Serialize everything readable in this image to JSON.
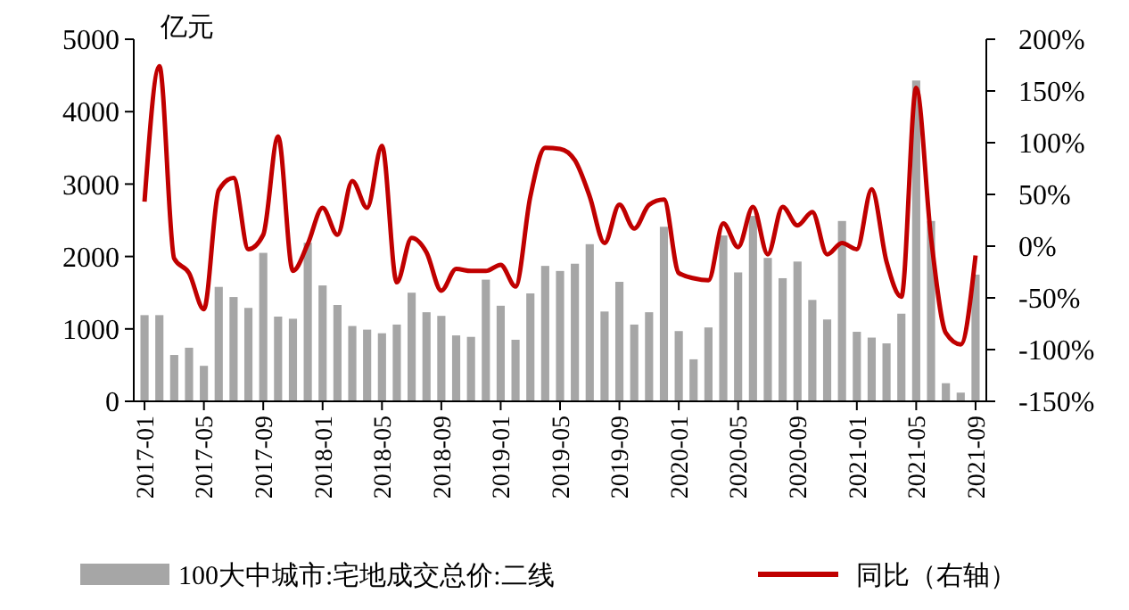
{
  "chart_data": {
    "type": "bar",
    "ylabel": "亿元",
    "categories": [
      "2017-01",
      null,
      null,
      null,
      "2017-05",
      null,
      null,
      null,
      "2017-09",
      null,
      null,
      null,
      "2018-01",
      null,
      null,
      null,
      "2018-05",
      null,
      null,
      null,
      "2018-09",
      null,
      null,
      null,
      "2019-01",
      null,
      null,
      null,
      "2019-05",
      null,
      null,
      null,
      "2019-09",
      null,
      null,
      null,
      "2020-01",
      null,
      null,
      null,
      "2020-05",
      null,
      null,
      null,
      "2020-09",
      null,
      null,
      null,
      "2021-01",
      null,
      null,
      null,
      "2021-05",
      null,
      null,
      null,
      "2021-09"
    ],
    "series": [
      {
        "name": "100大中城市:宅地成交总价:二线",
        "color": "#a6a6a6",
        "values": [
          1190,
          1190,
          640,
          740,
          490,
          1580,
          1440,
          1290,
          2050,
          1170,
          1140,
          2190,
          1600,
          1330,
          1040,
          990,
          940,
          1060,
          1500,
          1230,
          1180,
          910,
          890,
          1680,
          1320,
          850,
          1490,
          1870,
          1800,
          1900,
          2170,
          1240,
          1650,
          1060,
          1230,
          2410,
          970,
          580,
          1020,
          2290,
          1780,
          2560,
          1980,
          1700,
          1930,
          1400,
          1130,
          2490,
          960,
          880,
          800,
          1210,
          4430,
          2490,
          250,
          120,
          1750
        ]
      },
      {
        "name": "同比（右轴）",
        "type": "line",
        "axis": "y2",
        "color": "#c00000",
        "values": [
          43,
          174,
          -12,
          -26,
          -61,
          54,
          66,
          -3,
          11,
          106,
          -24,
          2,
          37,
          11,
          63,
          37,
          97,
          -35,
          8,
          -6,
          -43,
          -22,
          -24,
          -24,
          -18,
          -39,
          48,
          95,
          94,
          83,
          48,
          3,
          40,
          17,
          40,
          45,
          -26,
          -31,
          -33,
          22,
          -1,
          38,
          -8,
          38,
          20,
          33,
          -8,
          3,
          -3,
          55,
          -15,
          -49,
          153,
          8,
          -84,
          -95,
          -9
        ]
      }
    ],
    "ylim": [
      0,
      5000
    ],
    "yticks": [
      0,
      1000,
      2000,
      3000,
      4000,
      5000
    ],
    "y2lim": [
      -150,
      200
    ],
    "y2ticks": [
      {
        "value": -150,
        "label": "-150%"
      },
      {
        "value": -100,
        "label": "-100%"
      },
      {
        "value": -50,
        "label": "-50%"
      },
      {
        "value": 0,
        "label": "0%"
      },
      {
        "value": 50,
        "label": "50%"
      },
      {
        "value": 100,
        "label": "100%"
      },
      {
        "value": 150,
        "label": "150%"
      },
      {
        "value": 200,
        "label": "200%"
      }
    ],
    "grid": false,
    "legend": "bottom",
    "line_style": "solid",
    "marker": "none"
  }
}
